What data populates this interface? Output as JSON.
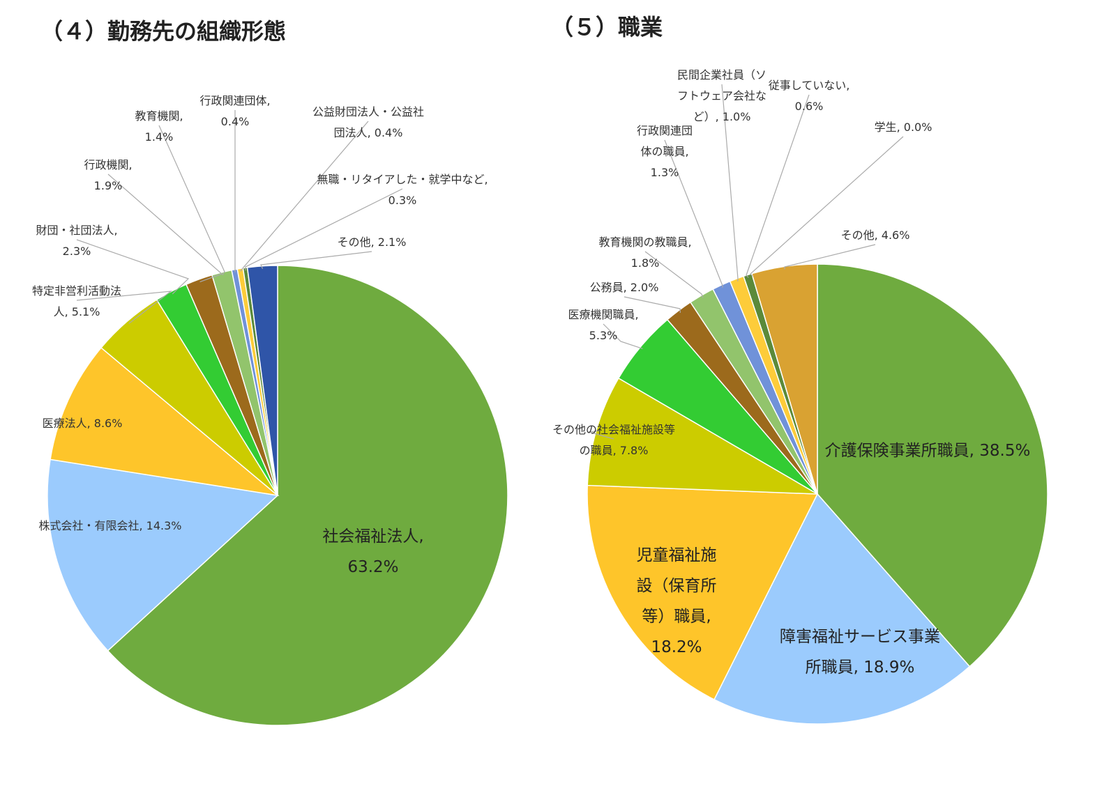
{
  "chart_data": [
    {
      "type": "pie",
      "title": "（４）勤務先の組織形態",
      "categories": [
        "社会福祉法人,",
        "株式会社・有限会社,",
        "医療法人,",
        "特定非営利活動法人,",
        "財団・社団法人,",
        "行政機関,",
        "教育機関,",
        "行政関連団体,",
        "公益財団法人・公益社団法人,",
        "無職・リタイアした・就学中など,",
        "その他,"
      ],
      "values": [
        63.2,
        14.3,
        8.6,
        5.1,
        2.3,
        1.9,
        1.4,
        0.4,
        0.4,
        0.3,
        2.1
      ],
      "value_labels": [
        "63.2%",
        "14.3%",
        "8.6%",
        "5.1%",
        "2.3%",
        "1.9%",
        "1.4%",
        "0.4%",
        "0.4%",
        "0.3%",
        "2.1%"
      ],
      "colors": [
        "#6fab3f",
        "#9bcbfd",
        "#fec52a",
        "#cccc00",
        "#33cc33",
        "#9c6a1c",
        "#92c46c",
        "#7092d9",
        "#fdcc3a",
        "#5b8a3a",
        "#2f55a8"
      ]
    },
    {
      "type": "pie",
      "title": "（５）職業",
      "categories": [
        "介護保険事業所職員,",
        "障害福祉サービス事業所職員,",
        "児童福祉施設（保育所等）職員,",
        "その他の社会福祉施設等の職員,",
        "医療機関職員,",
        "公務員,",
        "教育機関の教職員,",
        "行政関連団体の職員,",
        "民間企業社員（ソフトウェア会社など）,",
        "従事していない,",
        "学生,",
        "その他,"
      ],
      "values": [
        38.5,
        18.9,
        18.2,
        7.8,
        5.3,
        2.0,
        1.8,
        1.3,
        1.0,
        0.6,
        0.0,
        4.6
      ],
      "value_labels": [
        "38.5%",
        "18.9%",
        "18.2%",
        "7.8%",
        "5.3%",
        "2.0%",
        "1.8%",
        "1.3%",
        "1.0%",
        "0.6%",
        "0.0%",
        "4.6%"
      ],
      "colors": [
        "#6fab3f",
        "#9bcbfd",
        "#fec52a",
        "#cccc00",
        "#33cc33",
        "#9c6a1c",
        "#92c46c",
        "#7092d9",
        "#fdcc3a",
        "#5b8a3a",
        "#999999",
        "#d9a232"
      ]
    }
  ]
}
